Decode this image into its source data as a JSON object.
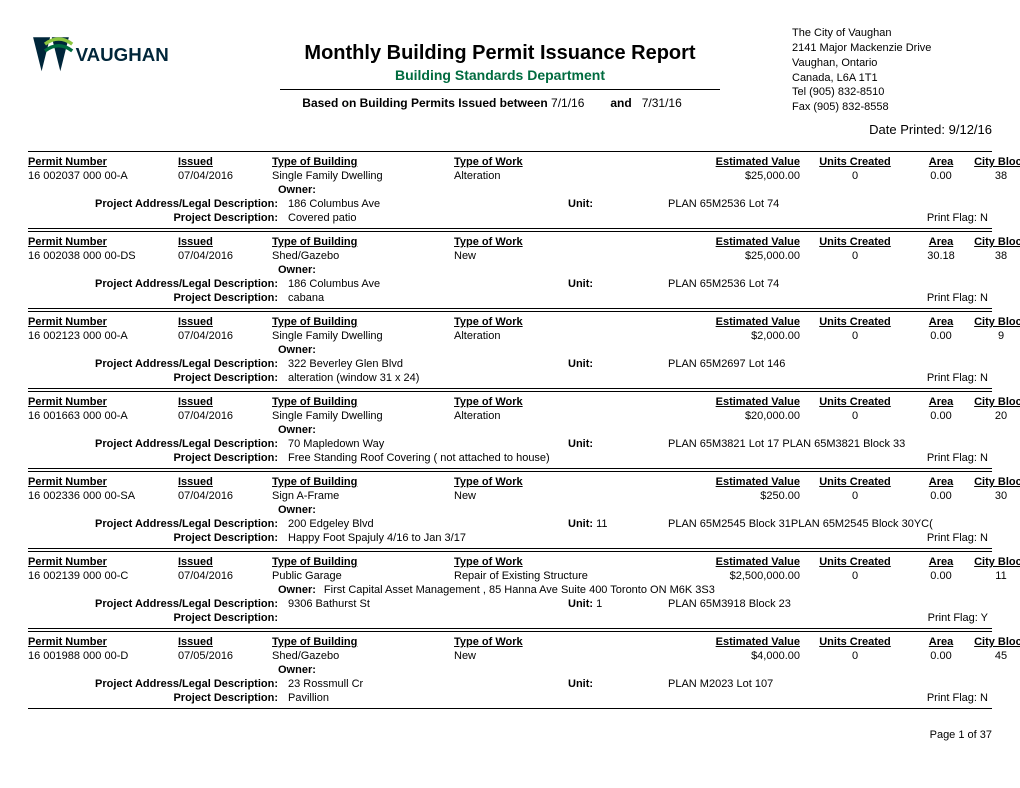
{
  "header": {
    "org_name": "VAUGHAN",
    "title": "Monthly Building Permit Issuance Report",
    "subtitle": "Building Standards Department",
    "based_prefix": "Based on Building Permits Issued between",
    "date_from": "7/1/16",
    "and_label": "and",
    "date_to": "7/31/16",
    "date_printed_label": "Date Printed:",
    "date_printed": "9/12/16",
    "logo_colors": {
      "dark": "#00263a",
      "green_light": "#8cc63f",
      "green_dark": "#006b3f"
    }
  },
  "address_block": {
    "line1": "The City of Vaughan",
    "line2": "2141 Major Mackenzie Drive",
    "line3": "Vaughan, Ontario",
    "line4": "Canada, L6A 1T1",
    "line5": "Tel (905) 832-8510",
    "line6": "Fax (905) 832-8558"
  },
  "labels": {
    "permit_number": "Permit Number",
    "issued": "Issued",
    "type_of_building": "Type of Building",
    "type_of_work": "Type of Work",
    "estimated_value": "Estimated Value",
    "units_created": "Units Created",
    "area": "Area",
    "city_block": "City Block",
    "owner": "Owner:",
    "project_address": "Project Address/Legal Description:",
    "unit": "Unit:",
    "project_description": "Project Description:",
    "print_flag": "Print Flag:"
  },
  "records": [
    {
      "permit_number": "16 002037 000 00-A",
      "issued": "07/04/2016",
      "type_of_building": "Single Family Dwelling",
      "type_of_work": "Alteration",
      "estimated_value": "$25,000.00",
      "units_created": "0",
      "area": "0.00",
      "city_block": "38",
      "owner": "",
      "address": "186 Columbus Ave",
      "unit": "",
      "legal": "PLAN 65M2536 Lot 74",
      "description": "Covered patio",
      "print_flag": "N"
    },
    {
      "permit_number": "16 002038 000 00-DS",
      "issued": "07/04/2016",
      "type_of_building": "Shed/Gazebo",
      "type_of_work": "New",
      "estimated_value": "$25,000.00",
      "units_created": "0",
      "area": "30.18",
      "city_block": "38",
      "owner": "",
      "address": "186 Columbus Ave",
      "unit": "",
      "legal": "PLAN 65M2536 Lot 74",
      "description": "cabana",
      "print_flag": "N"
    },
    {
      "permit_number": "16 002123 000 00-A",
      "issued": "07/04/2016",
      "type_of_building": "Single Family Dwelling",
      "type_of_work": "Alteration",
      "estimated_value": "$2,000.00",
      "units_created": "0",
      "area": "0.00",
      "city_block": "9",
      "owner": "",
      "address": "322 Beverley Glen Blvd",
      "unit": "",
      "legal": "PLAN 65M2697 Lot 146",
      "description": "alteration (window 31 x 24)",
      "print_flag": "N"
    },
    {
      "permit_number": "16 001663 000 00-A",
      "issued": "07/04/2016",
      "type_of_building": "Single Family Dwelling",
      "type_of_work": "Alteration",
      "estimated_value": "$20,000.00",
      "units_created": "0",
      "area": "0.00",
      "city_block": "20",
      "owner": "",
      "address": "70 Mapledown Way",
      "unit": "",
      "legal": "PLAN 65M3821 Lot 17 PLAN 65M3821 Block 33",
      "description": "Free Standing Roof Covering ( not attached to house)",
      "print_flag": "N"
    },
    {
      "permit_number": "16 002336 000 00-SA",
      "issued": "07/04/2016",
      "type_of_building": "Sign A-Frame",
      "type_of_work": "New",
      "estimated_value": "$250.00",
      "units_created": "0",
      "area": "0.00",
      "city_block": "30",
      "owner": "",
      "address": "200 Edgeley Blvd",
      "unit": "11",
      "legal": "PLAN 65M2545 Block 31PLAN 65M2545 Block 30YC(",
      "description": "Happy Foot Spajuly 4/16 to Jan 3/17",
      "print_flag": "N"
    },
    {
      "permit_number": "16 002139 000 00-C",
      "issued": "07/04/2016",
      "type_of_building": "Public Garage",
      "type_of_work": "Repair of Existing Structure",
      "estimated_value": "$2,500,000.00",
      "units_created": "0",
      "area": "0.00",
      "city_block": "11",
      "owner": "First Capital Asset Management  , 85 Hanna Ave Suite 400 Toronto  ON   M6K 3S3",
      "address": "9306 Bathurst St",
      "unit": "1",
      "legal": "PLAN 65M3918 Block 23",
      "description": "",
      "print_flag": "Y"
    },
    {
      "permit_number": "16 001988 000 00-D",
      "issued": "07/05/2016",
      "type_of_building": "Shed/Gazebo",
      "type_of_work": "New",
      "estimated_value": "$4,000.00",
      "units_created": "0",
      "area": "0.00",
      "city_block": "45",
      "owner": "",
      "address": "23 Rossmull Cr",
      "unit": "",
      "legal": "PLAN M2023 Lot 107",
      "description": "Pavillion",
      "print_flag": "N"
    }
  ],
  "footer": {
    "page": "Page 1 of 37"
  }
}
